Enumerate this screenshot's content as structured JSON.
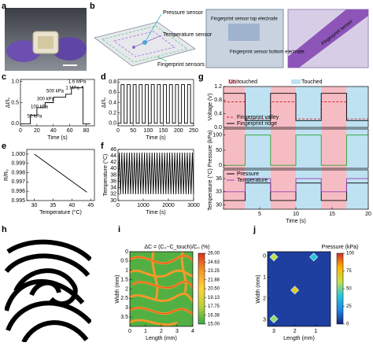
{
  "panel_labels": [
    "a",
    "b",
    "c",
    "d",
    "e",
    "f",
    "g",
    "h",
    "i",
    "j"
  ],
  "panel_b": {
    "pressure": "Pressure sensor",
    "temperature": "Temperature sensor",
    "fingerprint": "Fingerprint sensors",
    "top": "Fingerprint sensor top electrode",
    "bottom": "Fingerprint sensor bottom electrode",
    "inset": "Fingerprint sensor"
  },
  "chart_data": [
    {
      "type": "line",
      "xlabel": "Time (s)",
      "ylabel": "ΔI/I₀",
      "xlim": [
        0,
        90
      ],
      "xticks": [
        0,
        20,
        40,
        60,
        80
      ],
      "ylim": [
        -0.05,
        1.05
      ],
      "yticks": [
        {
          "value": 0,
          "label": "0.0"
        },
        0.5,
        {
          "value": 1,
          "label": "1.0"
        }
      ],
      "annotations": [
        "50 kPa",
        "100 kPa",
        "300 kPa",
        "500 kPa",
        "1 MPa",
        "1.6 MPa"
      ],
      "series": [
        {
          "color": "#000000",
          "x": [
            0,
            12,
            12,
            20,
            20,
            30,
            30,
            40,
            40,
            55,
            55,
            62,
            62,
            75,
            75,
            76,
            76,
            85
          ],
          "values": [
            0,
            0,
            0.2,
            0.2,
            0.38,
            0.38,
            0.5,
            0.5,
            0.63,
            0.63,
            0.7,
            0.7,
            0.85,
            0.85,
            0.88,
            0.88,
            0,
            0
          ]
        }
      ]
    },
    {
      "type": "line",
      "xlabel": "Time (s)",
      "ylabel": "ΔI/I₀",
      "xlim": [
        0,
        250
      ],
      "xticks": [
        0,
        50,
        100,
        150,
        200,
        250
      ],
      "ylim": [
        -0.05,
        0.85
      ],
      "yticks": [
        {
          "value": 0,
          "label": "0.0"
        },
        0.2,
        0.4,
        0.6,
        0.8
      ],
      "series": [
        {
          "color": "#000000",
          "x": [
            0,
            10,
            10,
            20,
            20,
            30,
            30,
            40,
            40,
            50,
            50,
            60,
            60,
            70,
            70,
            80,
            80,
            90,
            90,
            100,
            100,
            110,
            110,
            120,
            120,
            130,
            130,
            140,
            140,
            150,
            150,
            160,
            160,
            170,
            170,
            180,
            180,
            190,
            190,
            200,
            200,
            210,
            210,
            220,
            220,
            230,
            230,
            240,
            240,
            250
          ],
          "values": [
            0,
            0,
            0.75,
            0.75,
            0,
            0,
            0.75,
            0.75,
            0,
            0,
            0.75,
            0.75,
            0,
            0,
            0.75,
            0.75,
            0,
            0,
            0.75,
            0.75,
            0,
            0,
            0.75,
            0.75,
            0,
            0,
            0.75,
            0.75,
            0,
            0,
            0.75,
            0.75,
            0,
            0,
            0.75,
            0.75,
            0,
            0,
            0.75,
            0.75,
            0,
            0,
            0.75,
            0.75,
            0,
            0,
            0.75,
            0.75,
            0,
            0
          ]
        }
      ]
    },
    {
      "type": "line",
      "xlabel": "Temperature (°C)",
      "ylabel": "R/R₀",
      "xlim": [
        28,
        46
      ],
      "xticks": [
        30,
        35,
        40,
        45
      ],
      "ylim": [
        0.995,
        1.0005
      ],
      "yticks": [
        0.995,
        0.996,
        0.997,
        0.998,
        0.999,
        {
          "value": 1,
          "label": "1.000"
        }
      ],
      "series": [
        {
          "color": "#000000",
          "x": [
            30,
            44
          ],
          "values": [
            1.0,
            0.9959
          ]
        }
      ]
    },
    {
      "type": "line",
      "xlabel": "Time (s)",
      "ylabel": "Temperature (°C)",
      "xlim": [
        0,
        3000
      ],
      "xticks": [
        0,
        1000,
        2000,
        3000
      ],
      "ylim": [
        30,
        46
      ],
      "yticks": [
        30,
        32,
        34,
        36,
        38,
        40,
        42,
        44,
        46
      ],
      "series": [
        {
          "color": "#000000",
          "x": [
            0,
            50,
            100,
            150,
            200,
            250,
            300,
            350,
            400,
            450,
            500,
            550,
            600,
            650,
            700,
            750,
            800,
            850,
            900,
            950,
            1000,
            1050,
            1100,
            1150,
            1200,
            1250,
            1300,
            1350,
            1400,
            1450,
            1500,
            1550,
            1600,
            1650,
            1700,
            1750,
            1800,
            1850,
            1900,
            1950,
            2000,
            2050,
            2100,
            2150,
            2200,
            2250,
            2300,
            2350,
            2400,
            2450,
            2500,
            2550,
            2600,
            2650,
            2700,
            2750,
            2800,
            2850,
            2900,
            2950,
            3000
          ],
          "values": [
            32,
            45,
            32,
            45,
            32,
            45,
            32,
            45,
            32,
            45,
            32,
            45,
            32,
            45,
            32,
            45,
            32,
            45,
            32,
            45,
            32,
            45,
            32,
            45,
            32,
            45,
            32,
            45,
            32,
            45,
            32,
            45,
            32,
            45,
            32,
            45,
            32,
            45,
            32,
            45,
            32,
            45,
            32,
            45,
            32,
            45,
            32,
            45,
            32,
            45,
            32,
            45,
            32,
            45,
            32,
            45,
            32,
            45,
            32,
            45,
            32
          ]
        }
      ]
    },
    {
      "type": "line",
      "ylabel": "Voltage (V)",
      "ylabel_color": "#1f4fa0",
      "legend": "lower left",
      "region_legend": [
        {
          "name": "Un-touched",
          "color": "#f6bcc4"
        },
        {
          "name": "Touched",
          "color": "#bfe2f3"
        }
      ],
      "regions": [
        {
          "touched": false,
          "start": 0,
          "end": 3
        },
        {
          "touched": true,
          "start": 3,
          "end": 6.5
        },
        {
          "touched": false,
          "start": 6.5,
          "end": 10
        },
        {
          "touched": true,
          "start": 10,
          "end": 13.5
        },
        {
          "touched": false,
          "start": 13.5,
          "end": 17
        },
        {
          "touched": true,
          "start": 17,
          "end": 20
        }
      ],
      "xlim": [
        0,
        20
      ],
      "x": [
        0,
        3,
        3,
        6.5,
        6.5,
        10,
        10,
        13.5,
        13.5,
        17,
        17,
        20
      ],
      "ylim": [
        0,
        1.2
      ],
      "yticks": [
        {
          "value": 0,
          "label": "0.0"
        },
        0.4,
        0.8,
        1.2
      ],
      "series": [
        {
          "name": "Fingerprint valley",
          "color": "#d62728",
          "dash": true,
          "values": [
            0.75,
            0.75,
            0.25,
            0.25,
            0.75,
            0.75,
            0.25,
            0.25,
            0.75,
            0.75,
            0.25,
            0.25
          ]
        },
        {
          "name": "Fingerprint ridge",
          "color": "#000000",
          "values": [
            1.0,
            1.0,
            0.2,
            0.2,
            1.0,
            1.0,
            0.2,
            0.2,
            1.0,
            1.0,
            0.2,
            0.2
          ]
        }
      ]
    },
    {
      "type": "line",
      "ylabel": "Pressure (kPa)",
      "ylabel_color": "#2e9e3e",
      "xlim": [
        0,
        20
      ],
      "x": [
        0,
        3,
        3,
        6.5,
        6.5,
        10,
        10,
        13.5,
        13.5,
        17,
        17,
        20
      ],
      "ylim": [
        -10,
        120
      ],
      "yticks": [
        0,
        50,
        100
      ],
      "series": [
        {
          "color": "#2ca02c",
          "values": [
            0,
            0,
            100,
            100,
            0,
            0,
            100,
            100,
            0,
            0,
            100,
            100
          ]
        }
      ]
    },
    {
      "type": "line",
      "xlabel": "Time (s)",
      "ylabel": "Temperature (°C)",
      "ylabel_color": "#8e3a9a",
      "legend": "upper left",
      "xlim": [
        0,
        20
      ],
      "xticks": [
        5,
        10,
        15,
        20
      ],
      "x": [
        0,
        3,
        3,
        6.5,
        6.5,
        10,
        10,
        13.5,
        13.5,
        17,
        17,
        20
      ],
      "ylim": [
        29,
        38
      ],
      "yticks": [
        30,
        33,
        36
      ],
      "series": [
        {
          "name": "Pressure",
          "color": "#000000",
          "values": [
            31,
            31,
            35,
            35,
            31,
            31,
            35,
            35,
            31,
            31,
            35,
            35
          ]
        },
        {
          "name": "Temperature",
          "color": "#9b3fb0",
          "values": [
            33,
            33,
            36,
            36,
            33,
            33,
            36,
            36,
            33,
            33,
            36,
            36
          ]
        }
      ]
    },
    {
      "type": "contour",
      "xlabel": "Length (mm)",
      "ylabel": "Width (mm)",
      "xlim": [
        0,
        4
      ],
      "xticks": [
        0,
        1,
        2,
        3,
        4
      ],
      "ylim": [
        4,
        0
      ],
      "yticks": [
        0,
        0.5,
        1,
        1.5,
        2,
        2.5,
        3,
        3.5
      ],
      "colorbar": {
        "title": "ΔC = (C₀−C_touch)/C₀ (%)",
        "lim": [
          15,
          26
        ],
        "colors": [
          "#3aa84a",
          "#b7d23a",
          "#ffd23a",
          "#f39a25",
          "#e0301e"
        ],
        "ticks": [
          {
            "value": 15,
            "label": "15.00"
          },
          16.38,
          17.75,
          19.13,
          {
            "value": 20.5,
            "label": "20.50"
          },
          21.88,
          23.25,
          24.63,
          {
            "value": 26,
            "label": "26.00"
          }
        ]
      }
    },
    {
      "type": "heatmap",
      "xlabel": "Length (mm)",
      "ylabel": "Width (mm)",
      "xlim": [
        3.3,
        0.3
      ],
      "xticks": [
        3,
        2,
        1
      ],
      "ylim": [
        3.3,
        -0.2
      ],
      "yticks": [
        0,
        1,
        2,
        3
      ],
      "colorbar": {
        "title": "Pressure (kPa)",
        "lim": [
          0,
          100
        ],
        "colors": [
          "#1a237e",
          "#1e88e5",
          "#26c6da",
          "#c6e04a",
          "#ffb300",
          "#d32f2f"
        ],
        "ticks": [
          0,
          25,
          50,
          75,
          100
        ]
      },
      "points": {
        "x": [
          3,
          1.1,
          2,
          3
        ],
        "y": [
          0.05,
          0.05,
          1.6,
          2.95
        ],
        "values": [
          60,
          40,
          70,
          55
        ]
      }
    }
  ]
}
